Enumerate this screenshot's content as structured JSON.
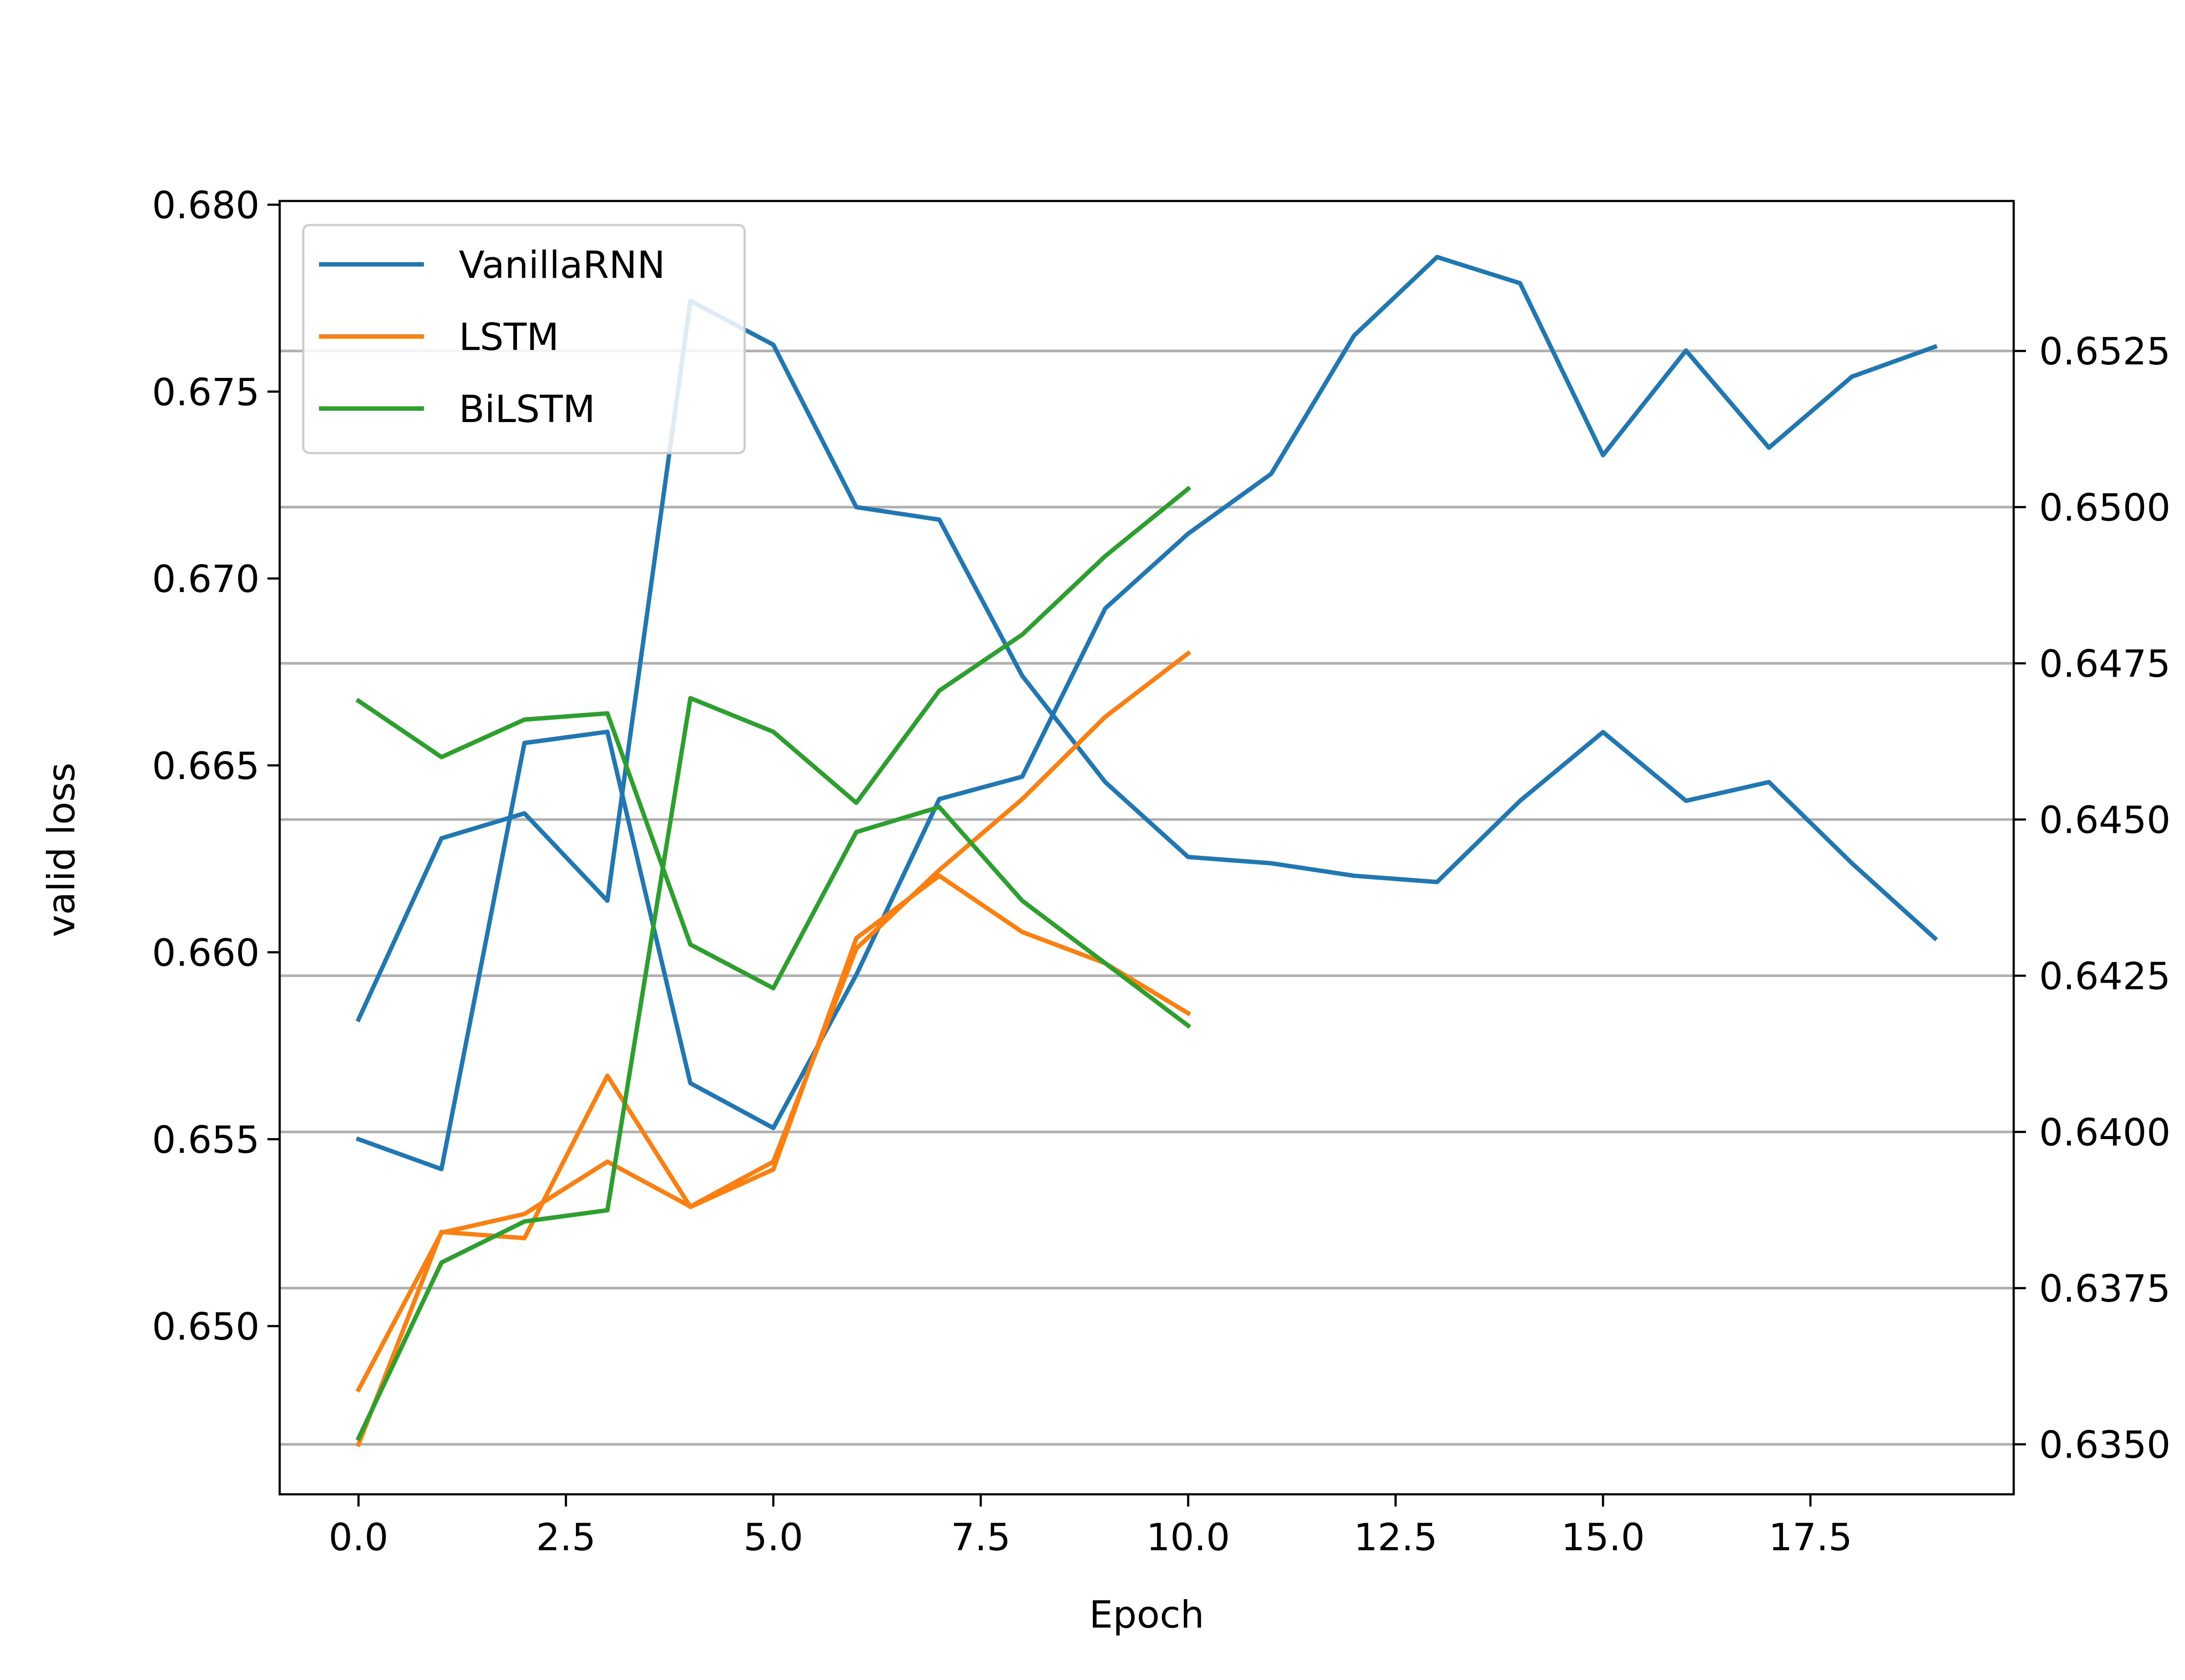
{
  "chart_data": {
    "type": "line",
    "xlabel": "Epoch",
    "ylabel_left": "valid loss",
    "ylabel_right": "",
    "xlim": [
      -0.95,
      19.95
    ],
    "xticks": [
      0.0,
      2.5,
      5.0,
      7.5,
      10.0,
      12.5,
      15.0,
      17.5
    ],
    "xtick_labels": [
      "0.0",
      "2.5",
      "5.0",
      "7.5",
      "10.0",
      "12.5",
      "15.0",
      "17.5"
    ],
    "ylim_left": [
      0.6455,
      0.6801
    ],
    "yticks_left": [
      0.65,
      0.655,
      0.66,
      0.665,
      0.67,
      0.675,
      0.68
    ],
    "ytick_labels_left": [
      "0.650",
      "0.655",
      "0.660",
      "0.665",
      "0.670",
      "0.675",
      "0.680"
    ],
    "ylim_right": [
      0.6342,
      0.6549
    ],
    "yticks_right": [
      0.635,
      0.6375,
      0.64,
      0.6425,
      0.645,
      0.6475,
      0.65,
      0.6525
    ],
    "ytick_labels_right": [
      "0.6350",
      "0.6375",
      "0.6400",
      "0.6425",
      "0.6450",
      "0.6475",
      "0.6500",
      "0.6525"
    ],
    "grid": "horizontal lines at right-axis ticks",
    "legend_position": "upper-left",
    "series": [
      {
        "name": "VanillaRNN",
        "color": "#1f77b4",
        "axis": "left",
        "x": [
          0,
          1,
          2,
          3,
          4,
          5,
          6,
          7,
          8,
          9,
          10,
          11,
          12,
          13,
          14,
          15,
          16,
          17,
          18,
          19
        ],
        "values": [
          0.655,
          0.6542,
          0.6656,
          0.6659,
          0.6565,
          0.6553,
          0.6594,
          0.6641,
          0.6647,
          0.6692,
          0.6712,
          0.6728,
          0.6765,
          0.6786,
          0.6779,
          0.6733,
          0.6761,
          0.6735,
          0.6754,
          0.6762
        ]
      },
      {
        "name": "",
        "color": "#1f77b4",
        "axis": "right",
        "x": [
          0,
          1,
          2,
          3,
          4,
          5,
          6,
          7,
          8,
          9,
          10,
          11,
          12,
          13,
          14,
          15,
          16,
          17,
          18,
          19
        ],
        "values": [
          0.6418,
          0.6447,
          0.6451,
          0.6437,
          0.6533,
          0.6526,
          0.65,
          0.6498,
          0.6473,
          0.6456,
          0.6444,
          0.6443,
          0.6441,
          0.644,
          0.6453,
          0.6464,
          0.6453,
          0.6456,
          0.6443,
          0.6431
        ]
      },
      {
        "name": "LSTM",
        "color": "#ff7f0e",
        "axis": "left",
        "x": [
          0,
          1,
          2,
          3,
          4,
          5,
          6,
          7,
          8,
          9,
          10
        ],
        "values": [
          0.6483,
          0.6525,
          0.653,
          0.6544,
          0.6532,
          0.6544,
          0.6601,
          0.6622,
          0.6641,
          0.6663,
          0.668
        ]
      },
      {
        "name": "",
        "color": "#ff7f0e",
        "axis": "right",
        "x": [
          0,
          1,
          2,
          3,
          4,
          5,
          6,
          7,
          8,
          9,
          10
        ],
        "values": [
          0.635,
          0.6384,
          0.6383,
          0.6409,
          0.6388,
          0.6394,
          0.6431,
          0.6441,
          0.6432,
          0.6427,
          0.6419
        ]
      },
      {
        "name": "BiLSTM",
        "color": "#2ca02c",
        "axis": "left",
        "x": [
          0,
          1,
          2,
          3,
          4,
          5,
          6,
          7,
          8,
          9,
          10
        ],
        "values": [
          0.647,
          0.6517,
          0.6528,
          0.6531,
          0.6668,
          0.6659,
          0.664,
          0.667,
          0.6685,
          0.6706,
          0.6724
        ]
      },
      {
        "name": "",
        "color": "#2ca02c",
        "axis": "right",
        "x": [
          0,
          1,
          2,
          3,
          4,
          5,
          6,
          7,
          8,
          9,
          10
        ],
        "values": [
          0.6469,
          0.646,
          0.6466,
          0.6467,
          0.643,
          0.6423,
          0.6448,
          0.6452,
          0.6437,
          0.6427,
          0.6417
        ]
      }
    ]
  }
}
